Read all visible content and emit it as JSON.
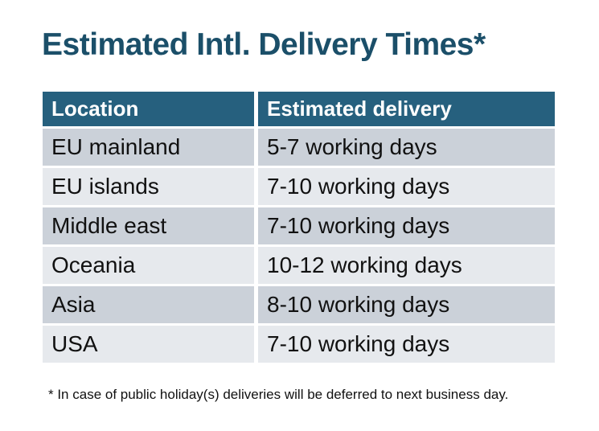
{
  "chart_data": {
    "type": "table",
    "title": "Estimated Intl. Delivery Times*",
    "columns": [
      "Location",
      "Estimated delivery"
    ],
    "rows": [
      [
        "EU mainland",
        "5-7 working days"
      ],
      [
        "EU islands",
        "7-10 working days"
      ],
      [
        "Middle east",
        "7-10 working days"
      ],
      [
        "Oceania",
        "10-12 working days"
      ],
      [
        "Asia",
        "8-10 working days"
      ],
      [
        "USA",
        "7-10 working days"
      ]
    ],
    "footnote": "* In case of public holiday(s) deliveries will be deferred to next business day."
  },
  "colors": {
    "title_color": "#1b4f69",
    "header_bg": "#26607e",
    "header_text": "#ffffff",
    "row_dark": "#cbd1d9",
    "row_light": "#e6e9ed",
    "cell_text": "#111111"
  }
}
